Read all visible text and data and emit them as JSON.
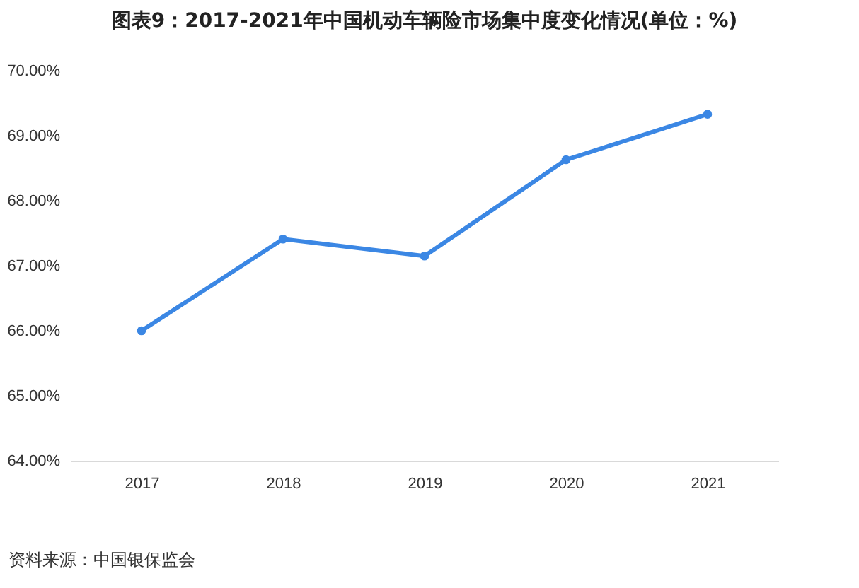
{
  "chart_data": {
    "type": "line",
    "title": "图表9：2017-2021年中国机动车辆险市场集中度变化情况(单位：%)",
    "categories": [
      "2017",
      "2018",
      "2019",
      "2020",
      "2021"
    ],
    "series": [
      {
        "color": "#3b87e4",
        "values": [
          66.0,
          67.41,
          67.15,
          68.63,
          69.33
        ]
      }
    ],
    "ylim": [
      64,
      70
    ],
    "yticks": [
      {
        "value": 64,
        "label": "64.00%"
      },
      {
        "value": 65,
        "label": "65.00%"
      },
      {
        "value": 66,
        "label": "66.00%"
      },
      {
        "value": 67,
        "label": "67.00%"
      },
      {
        "value": 68,
        "label": "68.00%"
      },
      {
        "value": 69,
        "label": "69.00%"
      },
      {
        "value": 70,
        "label": "70.00%"
      }
    ],
    "grid": false,
    "marker": "circle",
    "line_style": "solid",
    "annotations": [
      "资料来源：中国银保监会"
    ]
  }
}
